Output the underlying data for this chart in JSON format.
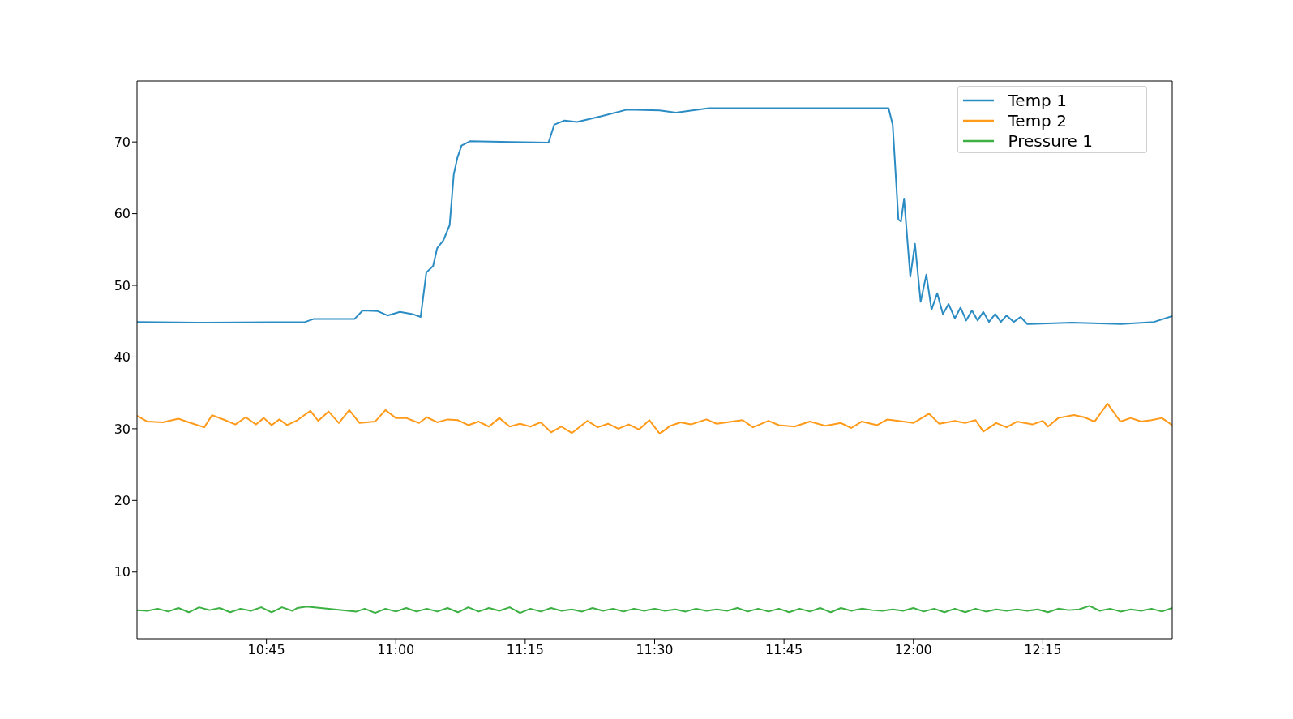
{
  "chart_data": {
    "type": "line",
    "xlim": [
      10.5,
      12.5
    ],
    "xticks": [
      {
        "value": 10.75,
        "label": "10:45"
      },
      {
        "value": 11,
        "label": "11:00"
      },
      {
        "value": 11.25,
        "label": "11:15"
      },
      {
        "value": 11.5,
        "label": "11:30"
      },
      {
        "value": 11.75,
        "label": "11:45"
      },
      {
        "value": 12,
        "label": "12:00"
      },
      {
        "value": 12.25,
        "label": "12:15"
      }
    ],
    "ylim": [
      0.7,
      78.5
    ],
    "yticks": [
      10,
      20,
      30,
      40,
      50,
      60,
      70
    ],
    "grid": false,
    "legend": "top right",
    "series": [
      {
        "name": "Temp 1",
        "color": "#2b8cc4",
        "x": [
          10.5,
          10.618,
          10.825,
          10.841,
          10.92,
          10.936,
          10.965,
          10.984,
          11.008,
          11.032,
          11.048,
          11.059,
          11.072,
          11.08,
          11.092,
          11.104,
          11.112,
          11.119,
          11.127,
          11.143,
          11.223,
          11.295,
          11.306,
          11.326,
          11.35,
          11.398,
          11.446,
          11.51,
          11.541,
          11.605,
          11.764,
          11.844,
          11.924,
          11.952,
          11.96,
          11.971,
          11.976,
          11.982,
          11.994,
          12.003,
          12.014,
          12.025,
          12.035,
          12.046,
          12.057,
          12.068,
          12.08,
          12.091,
          12.102,
          12.113,
          12.124,
          12.135,
          12.146,
          12.158,
          12.169,
          12.18,
          12.194,
          12.207,
          12.22,
          12.306,
          12.401,
          12.465,
          12.5
        ],
        "values": [
          44.9,
          44.8,
          44.9,
          45.3,
          45.3,
          46.5,
          46.4,
          45.8,
          46.3,
          46.0,
          45.6,
          51.8,
          52.7,
          55.2,
          56.3,
          58.4,
          65.5,
          67.8,
          69.5,
          70.1,
          70.0,
          69.9,
          72.4,
          73.0,
          72.8,
          73.6,
          74.5,
          74.4,
          74.1,
          74.7,
          74.7,
          74.7,
          74.7,
          74.7,
          72.4,
          59.2,
          58.9,
          62.1,
          51.2,
          55.8,
          47.7,
          51.5,
          46.6,
          48.9,
          46.0,
          47.4,
          45.4,
          46.9,
          45.1,
          46.5,
          45.1,
          46.3,
          44.9,
          46.0,
          44.9,
          45.8,
          44.9,
          45.6,
          44.6,
          44.8,
          44.6,
          44.9,
          45.7
        ]
      },
      {
        "name": "Temp 2",
        "color": "#ff9a1a",
        "x": [
          10.5,
          10.52,
          10.55,
          10.58,
          10.6,
          10.63,
          10.645,
          10.67,
          10.69,
          10.71,
          10.73,
          10.745,
          10.76,
          10.775,
          10.79,
          10.81,
          10.835,
          10.85,
          10.87,
          10.89,
          10.91,
          10.93,
          10.96,
          10.98,
          11.0,
          11.02,
          11.045,
          11.06,
          11.08,
          11.1,
          11.12,
          11.14,
          11.16,
          11.18,
          11.2,
          11.22,
          11.24,
          11.26,
          11.28,
          11.3,
          11.32,
          11.34,
          11.37,
          11.39,
          11.41,
          11.43,
          11.45,
          11.47,
          11.49,
          11.51,
          11.53,
          11.55,
          11.57,
          11.6,
          11.62,
          11.65,
          11.67,
          11.69,
          11.72,
          11.74,
          11.77,
          11.8,
          11.83,
          11.86,
          11.88,
          11.9,
          11.93,
          11.95,
          11.98,
          12.0,
          12.03,
          12.05,
          12.08,
          12.1,
          12.12,
          12.135,
          12.16,
          12.18,
          12.2,
          12.23,
          12.25,
          12.26,
          12.28,
          12.31,
          12.33,
          12.35,
          12.375,
          12.4,
          12.42,
          12.44,
          12.46,
          12.48,
          12.5
        ],
        "values": [
          31.8,
          31.0,
          30.9,
          31.4,
          30.9,
          30.2,
          31.9,
          31.2,
          30.6,
          31.6,
          30.6,
          31.5,
          30.5,
          31.3,
          30.5,
          31.2,
          32.5,
          31.1,
          32.4,
          30.8,
          32.6,
          30.8,
          31.0,
          32.6,
          31.5,
          31.5,
          30.8,
          31.6,
          30.9,
          31.3,
          31.2,
          30.5,
          31.0,
          30.3,
          31.5,
          30.3,
          30.7,
          30.3,
          30.9,
          29.5,
          30.3,
          29.4,
          31.1,
          30.2,
          30.7,
          30.0,
          30.6,
          29.9,
          31.2,
          29.3,
          30.4,
          30.9,
          30.6,
          31.3,
          30.7,
          31.0,
          31.2,
          30.2,
          31.1,
          30.5,
          30.3,
          31.0,
          30.4,
          30.8,
          30.1,
          31.0,
          30.5,
          31.3,
          31.0,
          30.8,
          32.1,
          30.7,
          31.1,
          30.8,
          31.2,
          29.6,
          30.8,
          30.2,
          31.0,
          30.6,
          31.1,
          30.3,
          31.5,
          31.9,
          31.6,
          31.0,
          33.5,
          31.0,
          31.5,
          31.0,
          31.2,
          31.5,
          30.5
        ]
      },
      {
        "name": "Pressure 1",
        "color": "#3cb043",
        "x": [
          10.5,
          10.52,
          10.54,
          10.56,
          10.58,
          10.6,
          10.62,
          10.64,
          10.66,
          10.68,
          10.7,
          10.72,
          10.74,
          10.76,
          10.78,
          10.8,
          10.81,
          10.828,
          10.924,
          10.94,
          10.96,
          10.98,
          11.0,
          11.02,
          11.04,
          11.06,
          11.08,
          11.1,
          11.12,
          11.14,
          11.16,
          11.18,
          11.2,
          11.22,
          11.24,
          11.26,
          11.28,
          11.3,
          11.32,
          11.34,
          11.36,
          11.38,
          11.4,
          11.42,
          11.44,
          11.46,
          11.48,
          11.5,
          11.52,
          11.54,
          11.56,
          11.58,
          11.6,
          11.62,
          11.64,
          11.66,
          11.68,
          11.7,
          11.72,
          11.74,
          11.76,
          11.78,
          11.8,
          11.82,
          11.84,
          11.86,
          11.88,
          11.9,
          11.92,
          11.94,
          11.96,
          11.98,
          12.0,
          12.02,
          12.04,
          12.06,
          12.08,
          12.1,
          12.12,
          12.14,
          12.16,
          12.18,
          12.2,
          12.22,
          12.24,
          12.26,
          12.28,
          12.3,
          12.32,
          12.34,
          12.36,
          12.38,
          12.4,
          12.42,
          12.44,
          12.46,
          12.48,
          12.5
        ],
        "values": [
          4.7,
          4.6,
          4.9,
          4.5,
          5.0,
          4.4,
          5.1,
          4.7,
          5.0,
          4.4,
          4.9,
          4.6,
          5.1,
          4.4,
          5.1,
          4.6,
          5.0,
          5.2,
          4.5,
          4.9,
          4.3,
          4.9,
          4.5,
          5.0,
          4.5,
          4.9,
          4.5,
          5.0,
          4.4,
          5.1,
          4.5,
          5.0,
          4.6,
          5.1,
          4.3,
          4.9,
          4.5,
          5.0,
          4.6,
          4.8,
          4.5,
          5.0,
          4.6,
          4.9,
          4.5,
          4.9,
          4.6,
          4.9,
          4.6,
          4.8,
          4.5,
          4.9,
          4.6,
          4.8,
          4.6,
          5.0,
          4.5,
          4.9,
          4.5,
          4.9,
          4.4,
          4.9,
          4.5,
          5.0,
          4.4,
          5.0,
          4.6,
          4.9,
          4.7,
          4.6,
          4.8,
          4.6,
          5.0,
          4.5,
          4.9,
          4.4,
          4.9,
          4.4,
          4.9,
          4.5,
          4.8,
          4.6,
          4.8,
          4.6,
          4.8,
          4.4,
          4.9,
          4.7,
          4.8,
          5.3,
          4.6,
          4.9,
          4.5,
          4.8,
          4.6,
          4.9,
          4.5,
          5.0
        ]
      }
    ]
  }
}
